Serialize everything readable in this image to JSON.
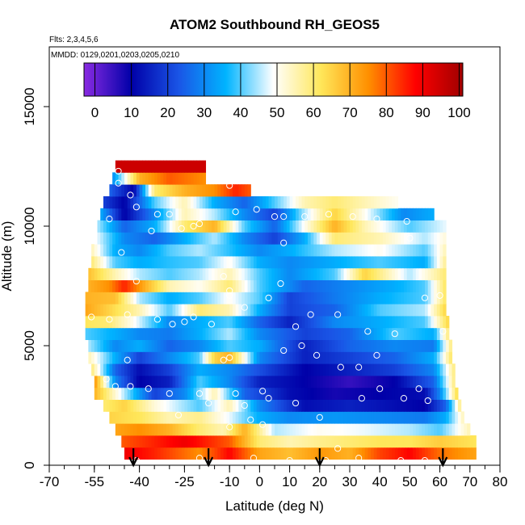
{
  "chart_data": {
    "type": "heatmap",
    "title": "ATOM2 Southbound RH_GEOS5",
    "flights_label": "Flts: 2,3,4,5,6",
    "dates_label": "MMDD: 0129,0201,0203,0205,0210",
    "xlabel": "Latitude (deg N)",
    "ylabel": "Altitude (m)",
    "xlim": [
      -70,
      80
    ],
    "ylim": [
      0,
      17500
    ],
    "x_ticks": [
      -70,
      -55,
      -40,
      -25,
      -10,
      0,
      10,
      20,
      30,
      40,
      50,
      60,
      70,
      80
    ],
    "x_tick_labels": [
      "-70",
      "-55",
      "-40",
      "-25",
      "-10",
      "0",
      "10",
      "20",
      "30",
      "40",
      "50",
      "60",
      "70",
      "80"
    ],
    "y_ticks": [
      0,
      5000,
      10000,
      15000
    ],
    "y_tick_labels": [
      "0",
      "5000",
      "10000",
      "15000"
    ],
    "colorbar": {
      "range": [
        -3,
        101
      ],
      "ticks": [
        0,
        10,
        20,
        30,
        40,
        50,
        60,
        70,
        80,
        90,
        100
      ],
      "tick_labels": [
        "0",
        "10",
        "20",
        "30",
        "40",
        "50",
        "60",
        "70",
        "80",
        "90",
        "100"
      ],
      "colors": [
        "#8a2be2",
        "#0000a8",
        "#1a55e6",
        "#00b4ff",
        "#ffffff",
        "#ffe75a",
        "#ff9000",
        "#ff0000",
        "#a00000"
      ]
    },
    "arrow_latitudes": [
      -42,
      -17,
      20,
      61
    ],
    "rh_profiles": [
      {
        "alt": 500,
        "lat_range": [
          -45,
          72
        ],
        "lat": [
          -45,
          -35,
          -20,
          -10,
          0,
          10,
          20,
          30,
          40,
          50,
          60,
          72
        ],
        "rh": [
          90,
          85,
          75,
          88,
          72,
          68,
          74,
          70,
          82,
          88,
          78,
          72
        ]
      },
      {
        "alt": 1000,
        "lat_range": [
          -46,
          72
        ],
        "lat": [
          -46,
          -35,
          -25,
          -10,
          0,
          10,
          20,
          30,
          40,
          50,
          60,
          72
        ],
        "rh": [
          80,
          85,
          90,
          80,
          60,
          55,
          58,
          60,
          62,
          62,
          66,
          62
        ]
      },
      {
        "alt": 1500,
        "lat_range": [
          -48,
          70
        ],
        "lat": [
          -48,
          -40,
          -30,
          -20,
          -12,
          -5,
          5,
          20,
          35,
          50,
          60,
          70
        ],
        "rh": [
          72,
          75,
          70,
          60,
          55,
          70,
          45,
          50,
          48,
          45,
          40,
          55
        ]
      },
      {
        "alt": 2000,
        "lat_range": [
          -50,
          68
        ],
        "lat": [
          -50,
          -40,
          -30,
          -20,
          -10,
          0,
          10,
          25,
          40,
          55,
          62,
          68
        ],
        "rh": [
          65,
          62,
          55,
          58,
          48,
          35,
          30,
          32,
          30,
          28,
          35,
          55
        ]
      },
      {
        "alt": 2500,
        "lat_range": [
          -52,
          67
        ],
        "lat": [
          -52,
          -45,
          -35,
          -20,
          -10,
          0,
          15,
          30,
          45,
          55,
          62,
          67
        ],
        "rh": [
          60,
          65,
          52,
          40,
          55,
          30,
          12,
          15,
          12,
          10,
          25,
          60
        ]
      },
      {
        "alt": 3000,
        "lat_range": [
          -55,
          66
        ],
        "lat": [
          -55,
          -45,
          -35,
          -25,
          -15,
          -5,
          10,
          25,
          40,
          55,
          60,
          66
        ],
        "rh": [
          70,
          45,
          20,
          30,
          55,
          25,
          12,
          8,
          10,
          12,
          30,
          65
        ]
      },
      {
        "alt": 3500,
        "lat_range": [
          -55,
          65
        ],
        "lat": [
          -55,
          -48,
          -40,
          -30,
          -20,
          -10,
          0,
          15,
          30,
          45,
          58,
          65
        ],
        "rh": [
          75,
          30,
          10,
          15,
          40,
          30,
          15,
          10,
          5,
          10,
          25,
          60
        ]
      },
      {
        "alt": 4000,
        "lat_range": [
          -56,
          65
        ],
        "lat": [
          -56,
          -48,
          -40,
          -30,
          -20,
          -10,
          0,
          15,
          30,
          45,
          58,
          65
        ],
        "rh": [
          60,
          25,
          12,
          20,
          35,
          30,
          22,
          10,
          15,
          20,
          30,
          60
        ]
      },
      {
        "alt": 4500,
        "lat_range": [
          -57,
          64
        ],
        "lat": [
          -57,
          -48,
          -40,
          -30,
          -20,
          -15,
          -10,
          0,
          15,
          30,
          45,
          58,
          64
        ],
        "rh": [
          55,
          35,
          20,
          30,
          40,
          65,
          70,
          30,
          15,
          20,
          25,
          35,
          62
        ]
      },
      {
        "alt": 5000,
        "lat_range": [
          -57,
          64
        ],
        "lat": [
          -57,
          -48,
          -40,
          -30,
          -20,
          -10,
          0,
          15,
          30,
          45,
          58,
          64
        ],
        "rh": [
          45,
          30,
          35,
          25,
          30,
          40,
          35,
          15,
          25,
          30,
          28,
          60
        ]
      },
      {
        "alt": 5500,
        "lat_range": [
          -58,
          63
        ],
        "lat": [
          -58,
          -48,
          -40,
          -30,
          -20,
          -10,
          0,
          15,
          30,
          45,
          58,
          63
        ],
        "rh": [
          40,
          35,
          30,
          28,
          35,
          45,
          30,
          20,
          25,
          40,
          35,
          60
        ]
      },
      {
        "alt": 6000,
        "lat_range": [
          -58,
          63
        ],
        "lat": [
          -58,
          -50,
          -42,
          -30,
          -20,
          -10,
          0,
          10,
          25,
          40,
          55,
          63
        ],
        "rh": [
          62,
          60,
          50,
          30,
          35,
          40,
          25,
          15,
          30,
          35,
          40,
          65
        ]
      },
      {
        "alt": 6500,
        "lat_range": [
          -58,
          62
        ],
        "lat": [
          -58,
          -50,
          -40,
          -30,
          -20,
          -10,
          0,
          10,
          25,
          40,
          55,
          62
        ],
        "rh": [
          72,
          65,
          55,
          40,
          60,
          55,
          35,
          20,
          25,
          40,
          45,
          65
        ]
      },
      {
        "alt": 7000,
        "lat_range": [
          -58,
          62
        ],
        "lat": [
          -58,
          -48,
          -40,
          -30,
          -20,
          -10,
          0,
          10,
          25,
          40,
          55,
          62
        ],
        "rh": [
          70,
          68,
          45,
          35,
          40,
          50,
          40,
          20,
          28,
          35,
          40,
          62
        ]
      },
      {
        "alt": 7500,
        "lat_range": [
          -57,
          62
        ],
        "lat": [
          -57,
          -50,
          -45,
          -38,
          -30,
          -20,
          -10,
          0,
          15,
          30,
          45,
          55,
          62
        ],
        "rh": [
          70,
          75,
          85,
          70,
          55,
          50,
          60,
          40,
          25,
          30,
          35,
          40,
          62
        ]
      },
      {
        "alt": 8000,
        "lat_range": [
          -57,
          62
        ],
        "lat": [
          -57,
          -48,
          -40,
          -30,
          -20,
          -10,
          0,
          10,
          25,
          35,
          50,
          62
        ],
        "rh": [
          68,
          55,
          45,
          40,
          45,
          55,
          40,
          30,
          40,
          65,
          45,
          60
        ]
      },
      {
        "alt": 8500,
        "lat_range": [
          -56,
          62
        ],
        "lat": [
          -56,
          -48,
          -40,
          -30,
          -20,
          -10,
          0,
          10,
          25,
          40,
          55,
          62
        ],
        "rh": [
          60,
          40,
          35,
          38,
          40,
          50,
          35,
          30,
          35,
          40,
          35,
          58
        ]
      },
      {
        "alt": 9000,
        "lat_range": [
          -56,
          62
        ],
        "lat": [
          -56,
          -48,
          -40,
          -30,
          -20,
          -10,
          0,
          10,
          25,
          40,
          55,
          62
        ],
        "rh": [
          55,
          35,
          30,
          40,
          45,
          38,
          30,
          35,
          45,
          50,
          40,
          55
        ]
      },
      {
        "alt": 9500,
        "lat_range": [
          -55,
          62
        ],
        "lat": [
          -55,
          -45,
          -35,
          -25,
          -15,
          -5,
          5,
          15,
          25,
          40,
          55,
          62
        ],
        "rh": [
          50,
          30,
          25,
          35,
          45,
          30,
          20,
          35,
          60,
          55,
          45,
          52
        ]
      },
      {
        "alt": 10000,
        "lat_range": [
          -54,
          62
        ],
        "lat": [
          -54,
          -45,
          -35,
          -25,
          -15,
          -5,
          5,
          15,
          25,
          35,
          50,
          62
        ],
        "rh": [
          45,
          25,
          35,
          60,
          70,
          40,
          25,
          50,
          70,
          55,
          40,
          48
        ]
      },
      {
        "alt": 10500,
        "lat_range": [
          -53,
          58
        ],
        "lat": [
          -53,
          -45,
          -35,
          -25,
          -15,
          -5,
          5,
          15,
          25,
          35,
          48,
          58
        ],
        "rh": [
          35,
          10,
          30,
          55,
          45,
          30,
          20,
          45,
          65,
          50,
          30,
          35
        ]
      },
      {
        "alt": 11000,
        "lat_range": [
          -52,
          46
        ],
        "lat": [
          -52,
          -45,
          -35,
          -25,
          -15,
          -5,
          5,
          15,
          25,
          35,
          46
        ],
        "rh": [
          20,
          10,
          40,
          55,
          35,
          25,
          40,
          55,
          60,
          55,
          50
        ]
      },
      {
        "alt": 11500,
        "lat_range": [
          -50,
          -3
        ],
        "lat": [
          -50,
          -42,
          -35,
          -25,
          -15,
          -8,
          -3
        ],
        "rh": [
          25,
          10,
          60,
          70,
          75,
          85,
          80
        ]
      },
      {
        "alt": 12000,
        "lat_range": [
          -49,
          -18
        ],
        "lat": [
          -49,
          -40,
          -30,
          -18
        ],
        "rh": [
          30,
          70,
          80,
          75
        ]
      },
      {
        "alt": 12500,
        "lat_range": [
          -48,
          -18
        ],
        "lat": [
          -48,
          -18
        ],
        "rh": [
          95,
          95
        ]
      }
    ],
    "sample_points": [
      [
        -47,
        12300
      ],
      [
        -43,
        11300
      ],
      [
        -47,
        11800
      ],
      [
        -41,
        10800
      ],
      [
        -50,
        10300
      ],
      [
        -34,
        10500
      ],
      [
        -30,
        10500
      ],
      [
        -20,
        10100
      ],
      [
        -8,
        10600
      ],
      [
        -1,
        10700
      ],
      [
        5,
        10400
      ],
      [
        8,
        10400
      ],
      [
        15,
        10400
      ],
      [
        23,
        10500
      ],
      [
        31,
        10400
      ],
      [
        39,
        10300
      ],
      [
        49,
        10200
      ],
      [
        -10,
        11700
      ],
      [
        -46,
        8900
      ],
      [
        -36,
        9800
      ],
      [
        -26,
        9900
      ],
      [
        8,
        9300
      ],
      [
        50,
        9500
      ],
      [
        -10,
        7300
      ],
      [
        3,
        7000
      ],
      [
        7,
        7600
      ],
      [
        -41,
        7700
      ],
      [
        -56,
        6200
      ],
      [
        -50,
        6100
      ],
      [
        -44,
        6300
      ],
      [
        -34,
        6100
      ],
      [
        -29,
        5900
      ],
      [
        -25,
        6000
      ],
      [
        -22,
        6200
      ],
      [
        -16,
        5900
      ],
      [
        12,
        5800
      ],
      [
        17,
        6300
      ],
      [
        26,
        6300
      ],
      [
        -10,
        7100
      ],
      [
        -5,
        6600
      ],
      [
        -44,
        4400
      ],
      [
        -58,
        3500
      ],
      [
        -51,
        3600
      ],
      [
        -48,
        3300
      ],
      [
        -43,
        3300
      ],
      [
        -37,
        3200
      ],
      [
        -30,
        3000
      ],
      [
        -20,
        3000
      ],
      [
        -12,
        4400
      ],
      [
        -10,
        4500
      ],
      [
        -8,
        3000
      ],
      [
        1,
        3100
      ],
      [
        8,
        4800
      ],
      [
        14,
        5000
      ],
      [
        19,
        4600
      ],
      [
        27,
        4100
      ],
      [
        33,
        4100
      ],
      [
        39,
        4600
      ],
      [
        -27,
        2100
      ],
      [
        -17,
        2600
      ],
      [
        -10,
        1600
      ],
      [
        -3,
        1900
      ],
      [
        1,
        1700
      ],
      [
        3,
        2800
      ],
      [
        12,
        2600
      ],
      [
        20,
        2000
      ],
      [
        34,
        2800
      ],
      [
        40,
        3200
      ],
      [
        48,
        2800
      ],
      [
        53,
        3200
      ],
      [
        56,
        2700
      ],
      [
        61,
        5600
      ],
      [
        55,
        7000
      ],
      [
        60,
        7100
      ],
      [
        36,
        5600
      ],
      [
        45,
        5500
      ],
      [
        -57,
        3300
      ],
      [
        -41,
        200
      ],
      [
        -33,
        100
      ],
      [
        -20,
        300
      ],
      [
        -2,
        300
      ],
      [
        10,
        200
      ],
      [
        22,
        200
      ],
      [
        33,
        300
      ],
      [
        47,
        200
      ],
      [
        55,
        200
      ],
      [
        62,
        100
      ],
      [
        -12,
        7900
      ],
      [
        -22,
        10000
      ],
      [
        26,
        700
      ],
      [
        -5,
        2500
      ]
    ]
  }
}
